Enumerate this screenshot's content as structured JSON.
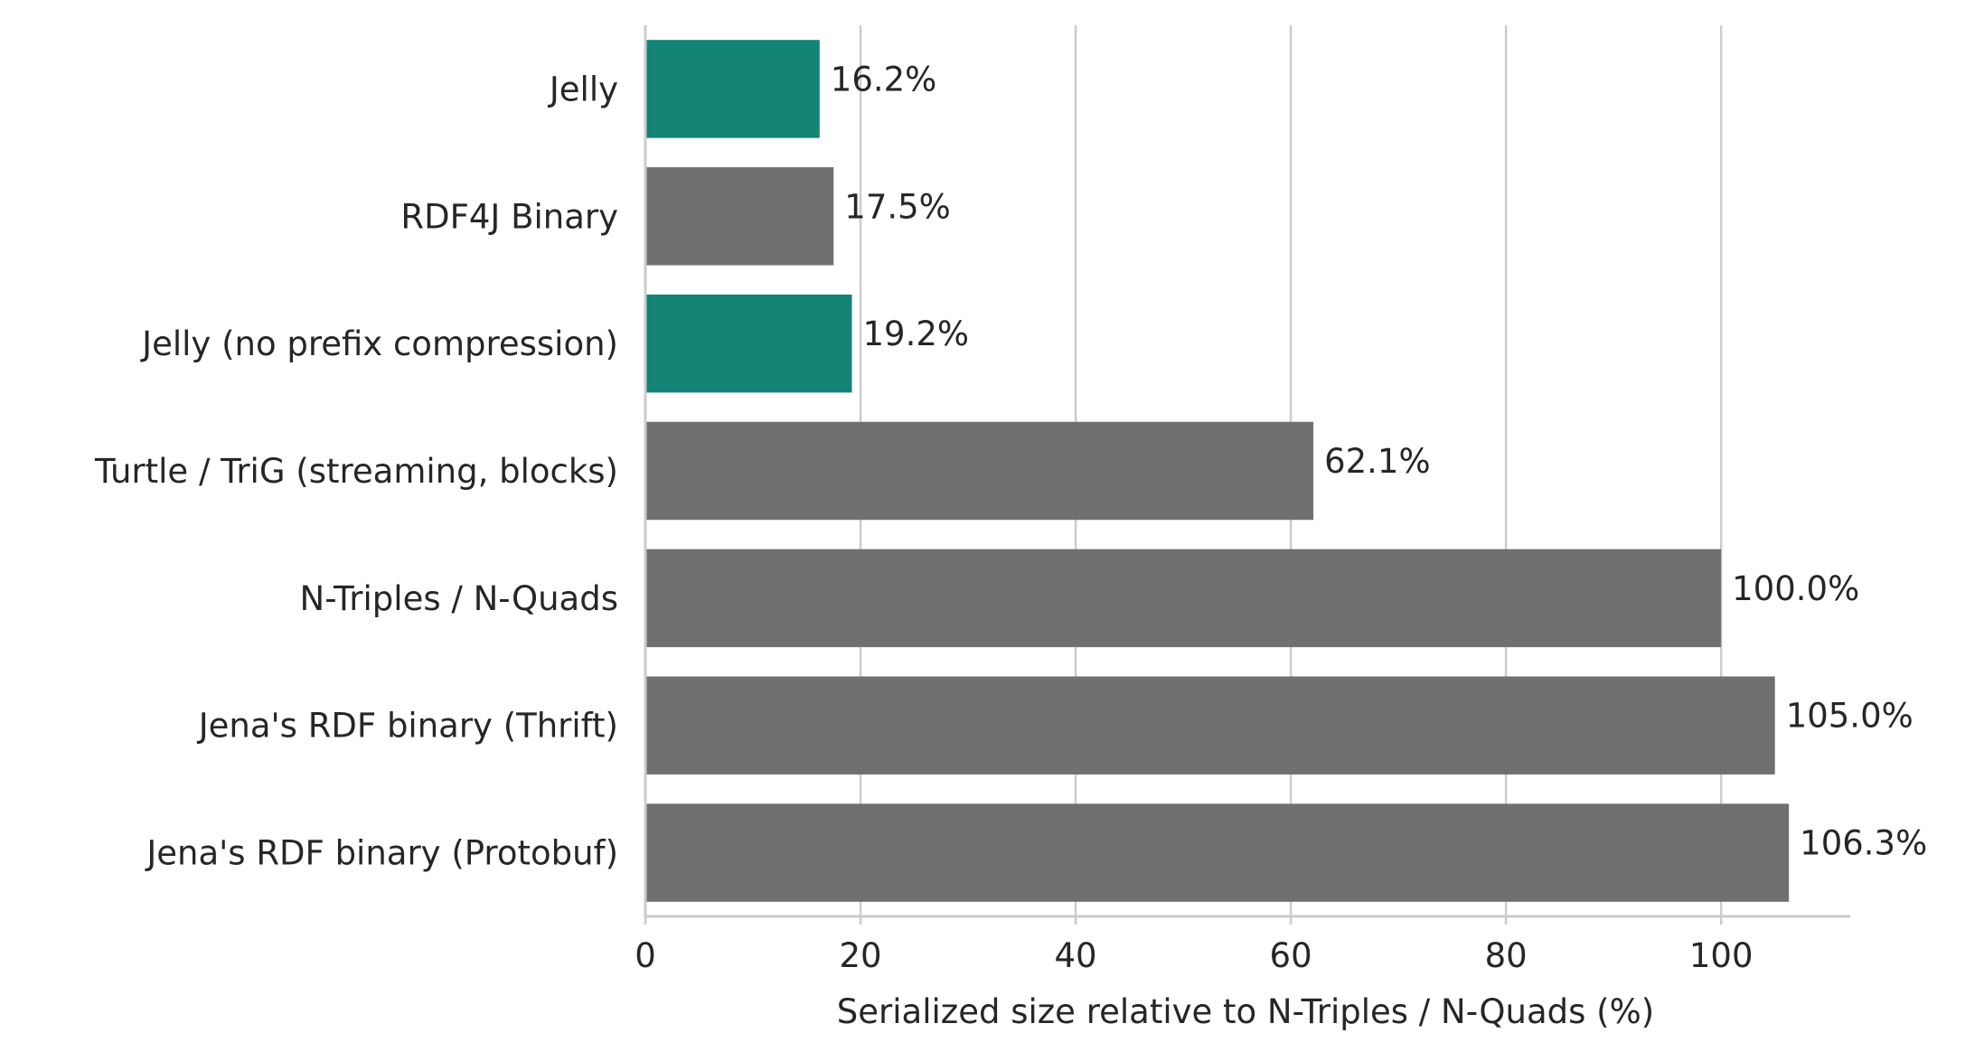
{
  "colors": {
    "highlight": "#138476",
    "default": "#707070",
    "grid": "#cccccc",
    "axis": "#cccccc",
    "text": "#262626"
  },
  "chart_data": {
    "type": "bar",
    "orientation": "horizontal",
    "title": "",
    "xlabel": "Serialized size relative to N-Triples / N-Quads (%)",
    "ylabel": "",
    "xlim": [
      0,
      112
    ],
    "xticks": [
      0,
      20,
      40,
      60,
      80,
      100
    ],
    "grid": "vertical",
    "categories": [
      "Jelly",
      "RDF4J Binary",
      "Jelly (no prefix compression)",
      "Turtle / TriG (streaming, blocks)",
      "N-Triples / N-Quads",
      "Jena's RDF binary (Thrift)",
      "Jena's RDF binary (Protobuf)"
    ],
    "values": [
      16.2,
      17.5,
      19.2,
      62.1,
      100.0,
      105.0,
      106.3
    ],
    "value_labels": [
      "16.2%",
      "17.5%",
      "19.2%",
      "62.1%",
      "100.0%",
      "105.0%",
      "106.3%"
    ],
    "highlighted": [
      true,
      false,
      true,
      false,
      false,
      false,
      false
    ]
  }
}
